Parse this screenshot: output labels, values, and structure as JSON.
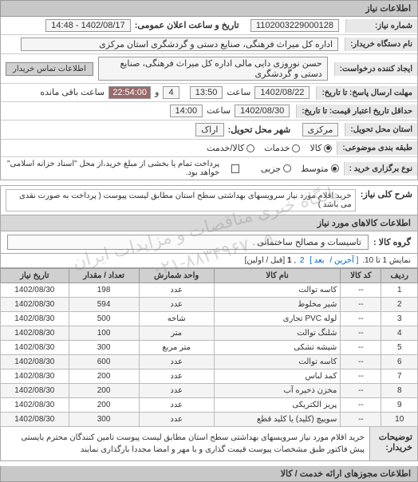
{
  "watermark": {
    "line1": "پایگاه خبری مناقصات و مزایدات ایران",
    "line2": "۰۲۱-۸۸۳۴۹۶۷۰-۵"
  },
  "header": {
    "title": "اطلاعات نیاز"
  },
  "fields": {
    "request_no_label": "شماره نیاز:",
    "request_no": "1102003229000128",
    "announce_label": "تاریخ و ساعت اعلان عمومی:",
    "announce_value": "1402/08/17 - 14:48",
    "buyer_org_label": "نام دستگاه خریدار:",
    "buyer_org": "اداره کل میراث فرهنگی، صنایع دستی و گردشگری استان مرکزی",
    "requester_label": "ایجاد کننده درخواست:",
    "requester": "حسن نوروزی دایی مالی اداره کل میراث فرهنگی، صنایع دستی و گردشگری",
    "contact_btn": "اطلاعات تماس خریدار",
    "reply_deadline_label": "مهلت ارسال پاسخ: تا تاریخ:",
    "reply_date": "1402/08/22",
    "reply_time_label": "ساعت",
    "reply_time": "13:50",
    "remain_days": "4",
    "remain_and": "و",
    "remain_time": "22:54:00",
    "remain_suffix": "ساعت باقی مانده",
    "price_valid_label": "حداقل تاریخ اعتبار قیمت: تا تاریخ:",
    "price_valid_date": "1402/08/30",
    "price_valid_time": "14:00",
    "province_label": "استان محل تحویل:",
    "province": "مرکزی",
    "city_label": "شهر محل تحویل:",
    "city": "اراک",
    "pkg_label": "طبقه بندی موضوعی:",
    "pkg_opts": {
      "kala": "کالا",
      "khadamat": "خدمات",
      "both": "کالا/خدمت"
    },
    "buy_type_label": "نوع برگزاری خرید :",
    "buy_type_opts": {
      "medium": "متوسط",
      "partial": "جزیی"
    },
    "buy_type_note": "پرداخت تمام یا بخشی از مبلغ خرید،از محل \"اسناد خزانه اسلامی\" خواهد بود."
  },
  "need": {
    "label": "شرح کلی نیاز:",
    "text": "خرید اقلام مورد نیاز سرویسهای بهداشتی سطح استان مطابق لیست پیوست ( پرداخت به صورت نقدی می باشد )"
  },
  "goods_info": {
    "header": "اطلاعات کالاهای مورد نیاز",
    "group_label": "گروه کالا :",
    "group_value": "تاسیسات و مصالح ساختمانی"
  },
  "pagination": {
    "text_prefix": "نمایش 1 تا 10.",
    "last": "[ آخرین /",
    "next": "بعد ]",
    "p2": "2",
    "sep": ",",
    "p1": "1",
    "text_suffix": "[قبل / اولین]"
  },
  "table": {
    "headers": {
      "row": "ردیف",
      "code": "کد کالا",
      "name": "نام کالا",
      "unit": "واحد شمارش",
      "qty": "تعداد / مقدار",
      "date": "تاریخ نیاز"
    },
    "rows": [
      {
        "n": "1",
        "code": "--",
        "name": "کاسه توالت",
        "unit": "عدد",
        "qty": "198",
        "date": "1402/08/30"
      },
      {
        "n": "2",
        "code": "--",
        "name": "شیر مخلوط",
        "unit": "عدد",
        "qty": "594",
        "date": "1402/08/30"
      },
      {
        "n": "3",
        "code": "--",
        "name": "لوله PVC تجاری",
        "unit": "شاخه",
        "qty": "500",
        "date": "1402/08/30"
      },
      {
        "n": "4",
        "code": "--",
        "name": "شلنگ توالت",
        "unit": "متر",
        "qty": "100",
        "date": "1402/08/30"
      },
      {
        "n": "5",
        "code": "--",
        "name": "شیشه تشکی",
        "unit": "متر مربع",
        "qty": "300",
        "date": "1402/08/30"
      },
      {
        "n": "6",
        "code": "--",
        "name": "کاسه توالت",
        "unit": "عدد",
        "qty": "600",
        "date": "1402/08/30"
      },
      {
        "n": "7",
        "code": "--",
        "name": "کمد لباس",
        "unit": "عدد",
        "qty": "200",
        "date": "1402/08/30"
      },
      {
        "n": "8",
        "code": "--",
        "name": "مخزن ذخیره آب",
        "unit": "عدد",
        "qty": "200",
        "date": "1402/08/30"
      },
      {
        "n": "9",
        "code": "--",
        "name": "پریز الکتریکی",
        "unit": "عدد",
        "qty": "200",
        "date": "1402/08/30"
      },
      {
        "n": "10",
        "code": "--",
        "name": "سوییچ (کلید) یا کلید قطع",
        "unit": "عدد",
        "qty": "300",
        "date": "1402/08/30"
      }
    ]
  },
  "buyer_desc": {
    "label": "توضیحات خریدار:",
    "text": "خرید اقلام مورد نیاز سرویسهای بهداشتی سطح استان مطابق لیست پیوست تامین کنندگان محترم بایستی پیش فاکتور طبق مشخصات پیوست قیمت گذاری و با مهر و امضا مجددا بارگذاری نمایند"
  },
  "footer": {
    "title": "اطلاعات مجوزهای ارائه خدمت / کالا"
  }
}
